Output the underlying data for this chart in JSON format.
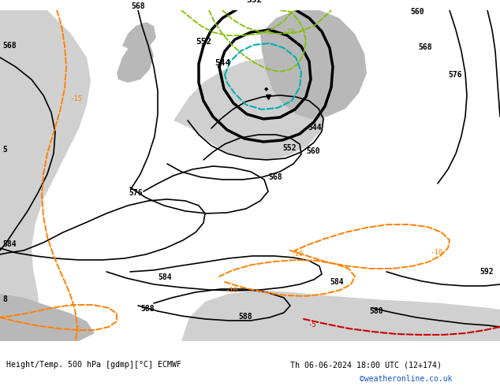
{
  "title_left": "Height/Temp. 500 hPa [gdmp][°C] ECMWF",
  "title_right": "Th 06-06-2024 18:00 UTC (12+174)",
  "watermark": "©weatheronline.co.uk",
  "bg_land_green": "#c8e696",
  "bg_sea_gray": "#d0d0d0",
  "bg_white": "#ffffff",
  "black": "#000000",
  "orange": "#ff8000",
  "teal": "#00b0b0",
  "green_dash": "#80c000",
  "red_dash": "#cc0000",
  "fig_width": 6.34,
  "fig_height": 4.9,
  "dpi": 100
}
